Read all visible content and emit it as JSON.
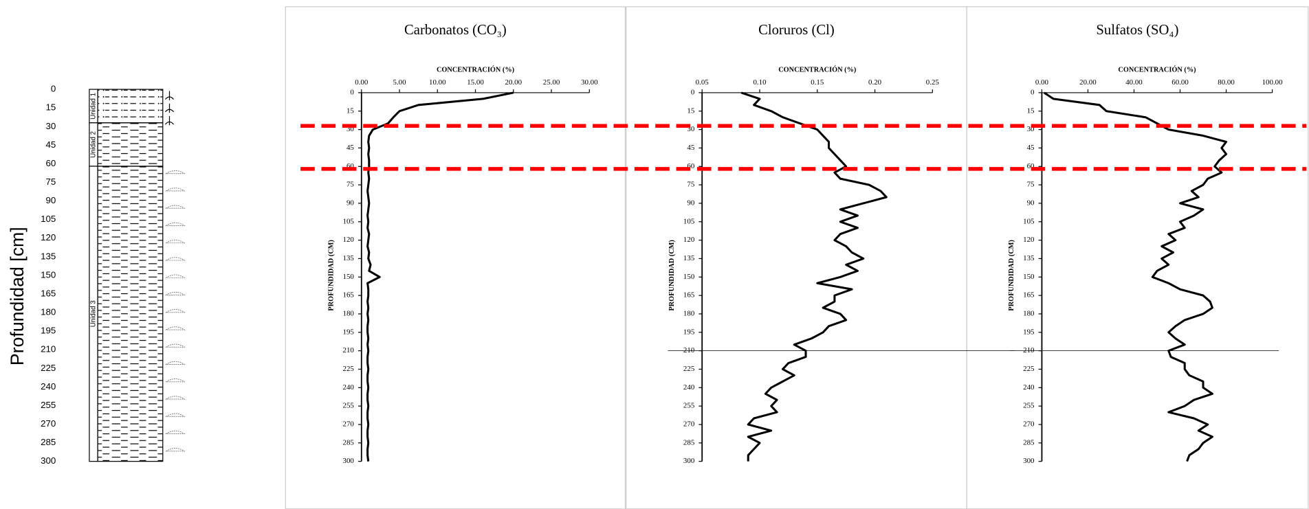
{
  "chart_data": [
    {
      "type": "column",
      "y_label": "Profundidad [cm]",
      "ylim": [
        0,
        300
      ],
      "yticks": [
        0,
        15,
        30,
        45,
        60,
        75,
        90,
        105,
        120,
        135,
        150,
        165,
        180,
        195,
        210,
        225,
        240,
        255,
        270,
        285,
        300
      ],
      "units": [
        {
          "name": "Unidad 1",
          "top": 0,
          "bottom": 27
        },
        {
          "name": "Unidad 2",
          "top": 27,
          "bottom": 62
        },
        {
          "name": "Unidad 3",
          "top": 62,
          "bottom": 300
        }
      ]
    },
    {
      "type": "line",
      "title": "Carbonatos (CO₃)",
      "x_label": "CONCENTRACIÓN (%)",
      "y_label": "PROFUNDIDAD (CM)",
      "xlim": [
        0,
        30
      ],
      "xticks": [
        {
          "value": 0,
          "label": "0.00"
        },
        {
          "value": 5,
          "label": "5.00"
        },
        {
          "value": 10,
          "label": "10.00"
        },
        {
          "value": 15,
          "label": "15.00"
        },
        {
          "value": 20,
          "label": "20.00"
        },
        {
          "value": 25,
          "label": "25.00"
        },
        {
          "value": 30,
          "label": "30.00"
        }
      ],
      "ylim": [
        0,
        300
      ],
      "yticks": [
        0,
        15,
        30,
        45,
        60,
        75,
        90,
        105,
        120,
        135,
        150,
        165,
        180,
        195,
        210,
        225,
        240,
        255,
        270,
        285,
        300
      ],
      "boundaries": [
        27,
        62
      ],
      "boundary_color": "#ff0000",
      "color": "#000000",
      "depth": [
        0,
        5,
        10,
        15,
        20,
        25,
        30,
        35,
        40,
        45,
        50,
        55,
        60,
        65,
        70,
        75,
        80,
        85,
        90,
        95,
        100,
        105,
        110,
        115,
        120,
        125,
        130,
        135,
        140,
        145,
        150,
        155,
        160,
        165,
        170,
        175,
        180,
        185,
        190,
        195,
        200,
        205,
        210,
        215,
        220,
        225,
        230,
        235,
        240,
        245,
        250,
        255,
        260,
        265,
        270,
        275,
        280,
        285,
        290,
        295,
        300
      ],
      "values": [
        20.0,
        16.0,
        7.5,
        5.0,
        4.2,
        3.5,
        1.5,
        1.0,
        0.9,
        1.0,
        0.9,
        1.0,
        1.0,
        0.9,
        1.0,
        0.9,
        0.8,
        0.9,
        1.0,
        0.9,
        0.8,
        0.9,
        0.8,
        1.0,
        0.9,
        0.8,
        1.0,
        0.9,
        1.2,
        1.0,
        2.4,
        0.8,
        0.9,
        0.9,
        0.8,
        0.9,
        0.8,
        0.9,
        0.8,
        0.8,
        0.9,
        0.8,
        0.9,
        0.8,
        0.8,
        0.9,
        0.8,
        0.8,
        0.9,
        0.8,
        0.8,
        0.9,
        0.8,
        0.8,
        0.9,
        0.8,
        0.8,
        0.9,
        0.8,
        0.8,
        0.9
      ]
    },
    {
      "type": "line",
      "title": "Cloruros (Cl)",
      "x_label": "CONCENTRACIÓN (%)",
      "y_label": "PROFUNDIDAD (CM)",
      "xlim": [
        0.05,
        0.25
      ],
      "xticks": [
        0.05,
        {
          "value": 0.1,
          "label": "0.10"
        },
        0.15,
        {
          "value": 0.2,
          "label": "0.20"
        },
        0.25
      ],
      "ylim": [
        0,
        300
      ],
      "yticks": [
        0,
        15,
        30,
        45,
        60,
        75,
        90,
        105,
        120,
        135,
        150,
        165,
        180,
        195,
        210,
        225,
        240,
        255,
        270,
        285,
        300
      ],
      "ref_line": 210,
      "color": "#000000",
      "depth": [
        0,
        5,
        10,
        15,
        20,
        25,
        30,
        35,
        40,
        45,
        50,
        55,
        60,
        65,
        70,
        75,
        80,
        85,
        90,
        95,
        100,
        105,
        110,
        115,
        120,
        125,
        130,
        135,
        140,
        145,
        150,
        155,
        160,
        165,
        170,
        175,
        180,
        185,
        190,
        195,
        200,
        205,
        210,
        215,
        220,
        225,
        230,
        235,
        240,
        245,
        250,
        255,
        260,
        265,
        270,
        275,
        280,
        285,
        290,
        295,
        300
      ],
      "values": [
        0.084,
        0.1,
        0.095,
        0.11,
        0.12,
        0.135,
        0.15,
        0.155,
        0.16,
        0.16,
        0.165,
        0.17,
        0.175,
        0.165,
        0.17,
        0.195,
        0.205,
        0.21,
        0.19,
        0.17,
        0.185,
        0.17,
        0.185,
        0.17,
        0.165,
        0.175,
        0.18,
        0.19,
        0.175,
        0.185,
        0.17,
        0.15,
        0.18,
        0.165,
        0.165,
        0.155,
        0.17,
        0.175,
        0.16,
        0.155,
        0.145,
        0.13,
        0.14,
        0.14,
        0.125,
        0.12,
        0.13,
        0.12,
        0.11,
        0.105,
        0.115,
        0.11,
        0.115,
        0.095,
        0.09,
        0.11,
        0.09,
        0.1,
        0.095,
        0.09,
        0.09
      ]
    },
    {
      "type": "line",
      "title": "Sulfatos (SO₄)",
      "x_label": "CONCENTRACIÓN (%)",
      "y_label": "PROFUNDIDAD (CM)",
      "xlim": [
        0,
        100
      ],
      "xticks": [
        {
          "value": 0,
          "label": "0.00"
        },
        {
          "value": 20,
          "label": "20.00"
        },
        {
          "value": 40,
          "label": "40.00"
        },
        {
          "value": 60,
          "label": "60.00"
        },
        {
          "value": 80,
          "label": "80.00"
        },
        {
          "value": 100,
          "label": "100.00"
        }
      ],
      "ylim": [
        0,
        300
      ],
      "yticks": [
        0,
        15,
        30,
        45,
        60,
        75,
        90,
        105,
        120,
        135,
        150,
        165,
        180,
        195,
        210,
        225,
        240,
        255,
        270,
        285,
        300
      ],
      "ref_line": 210,
      "color": "#000000",
      "depth": [
        0,
        5,
        10,
        15,
        20,
        25,
        30,
        35,
        40,
        45,
        50,
        55,
        60,
        65,
        70,
        75,
        80,
        85,
        90,
        95,
        100,
        105,
        110,
        115,
        120,
        125,
        130,
        135,
        140,
        145,
        150,
        155,
        160,
        165,
        170,
        175,
        180,
        185,
        190,
        195,
        200,
        205,
        210,
        215,
        220,
        225,
        230,
        235,
        240,
        245,
        250,
        255,
        260,
        265,
        270,
        275,
        280,
        285,
        290,
        295,
        300
      ],
      "values": [
        1,
        5,
        25,
        28,
        45,
        50,
        55,
        70,
        80,
        78,
        80,
        77,
        75,
        78,
        72,
        70,
        65,
        68,
        60,
        70,
        66,
        60,
        62,
        55,
        58,
        52,
        57,
        52,
        55,
        50,
        48,
        55,
        60,
        70,
        73,
        74,
        70,
        62,
        58,
        55,
        58,
        62,
        55,
        56,
        62,
        62,
        64,
        70,
        70,
        74,
        66,
        62,
        55,
        66,
        72,
        68,
        74,
        70,
        68,
        64,
        63
      ]
    }
  ]
}
